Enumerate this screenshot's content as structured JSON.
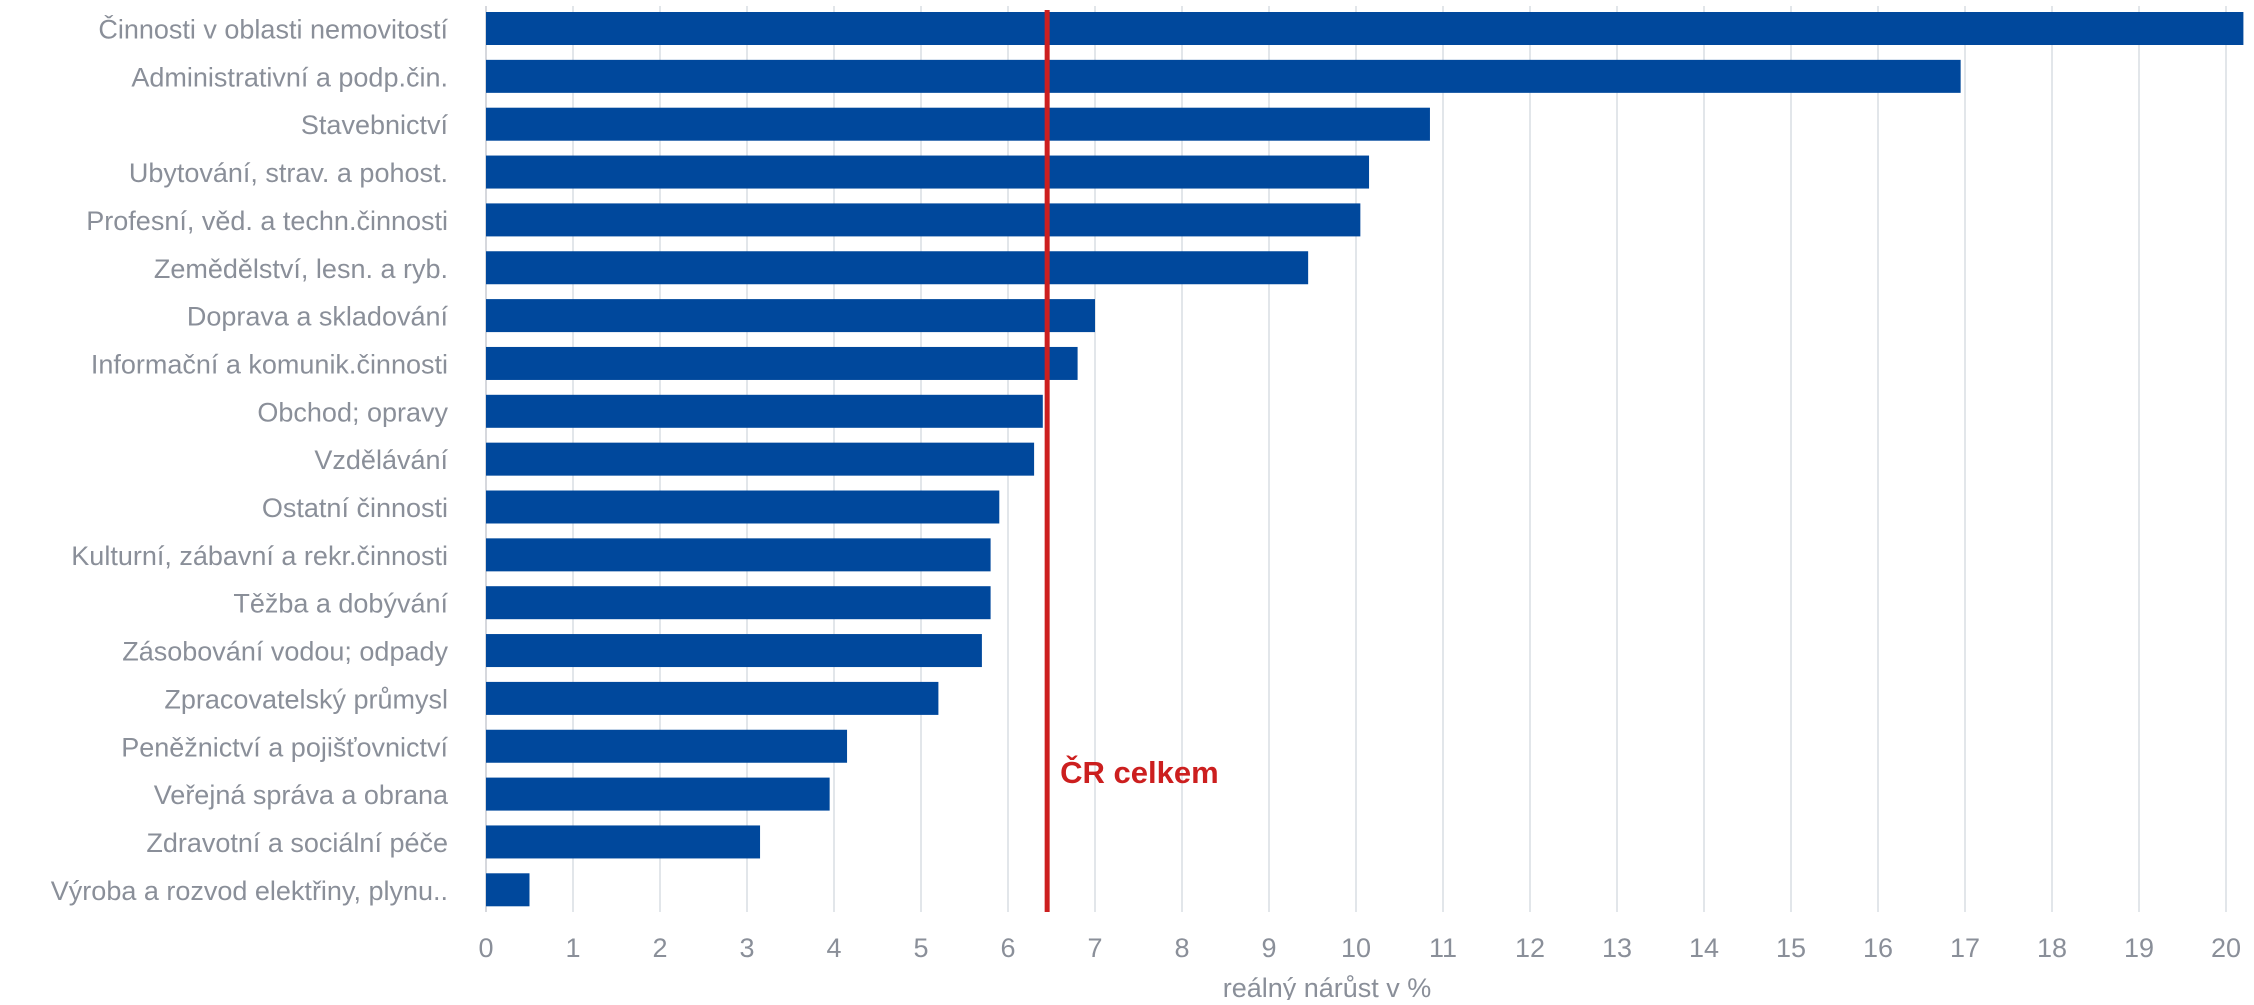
{
  "chart_data": {
    "type": "bar",
    "orientation": "horizontal",
    "title": "",
    "xlabel": "reálný nárůst v %",
    "ylabel": "",
    "xlim": [
      0,
      20.2
    ],
    "xticks": [
      0,
      1,
      2,
      3,
      4,
      5,
      6,
      7,
      8,
      9,
      10,
      11,
      12,
      13,
      14,
      15,
      16,
      17,
      18,
      19,
      20
    ],
    "grid": "vertical",
    "legend": "none",
    "colors": {
      "bar": "#00489c",
      "reference_line": "#cc1f1f",
      "grid": "#d9dde3",
      "text": "#8a8f99"
    },
    "categories": [
      "Činnosti v oblasti nemovitostí",
      "Administrativní a podp.čin.",
      "Stavebnictví",
      "Ubytování, strav. a pohost.",
      "Profesní, věd. a techn.činnosti",
      "Zemědělství, lesn. a ryb.",
      "Doprava a skladování",
      "Informační a komunik.činnosti",
      "Obchod; opravy",
      "Vzdělávání",
      "Ostatní činnosti",
      "Kulturní, zábavní a rekr.činnosti",
      "Těžba a dobývání",
      "Zásobování vodou; odpady",
      "Zpracovatelský průmysl",
      "Peněžnictví a pojišťovnictví",
      "Veřejná správa a obrana",
      "Zdravotní a sociální péče",
      "Výroba a rozvod elektřiny, plynu.."
    ],
    "values": [
      20.2,
      16.95,
      10.85,
      10.15,
      10.05,
      9.45,
      7.0,
      6.8,
      6.4,
      6.3,
      5.9,
      5.8,
      5.8,
      5.7,
      5.2,
      4.15,
      3.95,
      3.15,
      0.5
    ],
    "reference_line": {
      "label": "ČR celkem",
      "value": 6.45
    }
  }
}
